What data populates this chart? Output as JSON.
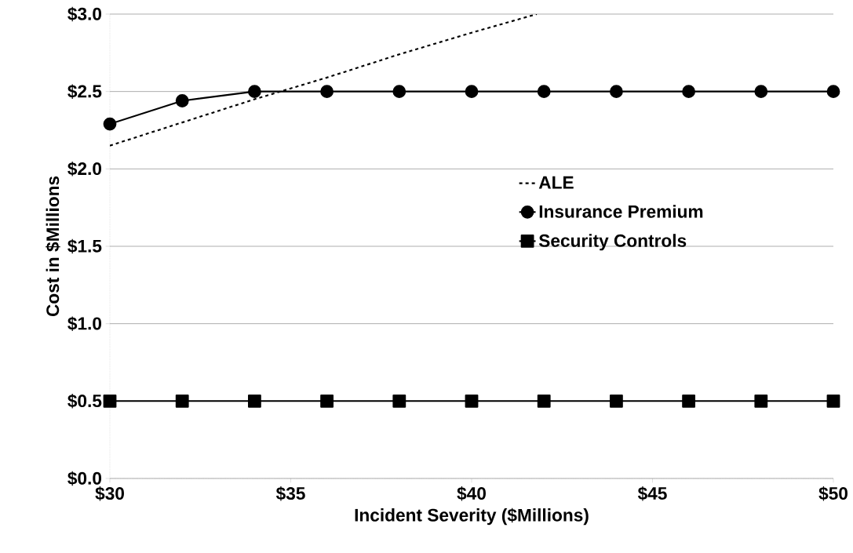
{
  "chart_data": {
    "type": "line",
    "xlabel": "Incident Severity ($Millions)",
    "ylabel": "Cost in $Millions",
    "xlim": [
      30,
      50
    ],
    "ylim": [
      0,
      3
    ],
    "xticks": [
      {
        "value": 30,
        "label": "$30"
      },
      {
        "value": 35,
        "label": "$35"
      },
      {
        "value": 40,
        "label": "$40"
      },
      {
        "value": 45,
        "label": "$45"
      },
      {
        "value": 50,
        "label": "$50"
      }
    ],
    "yticks": [
      {
        "value": 0,
        "label": "$0.0"
      },
      {
        "value": 0.5,
        "label": "$0.5"
      },
      {
        "value": 1,
        "label": "$1.0"
      },
      {
        "value": 1.5,
        "label": "$1.5"
      },
      {
        "value": 2,
        "label": "$2.0"
      },
      {
        "value": 2.5,
        "label": "$2.5"
      },
      {
        "value": 3,
        "label": "$3.0"
      }
    ],
    "grid": "y",
    "legend": "right",
    "series": [
      {
        "name": "ALE",
        "color": "#000000",
        "marker": "none",
        "line_style": "dashed",
        "x": [
          30,
          32,
          34,
          36,
          38,
          40,
          41.8
        ],
        "values": [
          2.15,
          2.3,
          2.45,
          2.59,
          2.74,
          2.88,
          3.0
        ]
      },
      {
        "name": "Insurance Premium",
        "color": "#000000",
        "marker": "circle",
        "line_style": "solid",
        "x": [
          30,
          32,
          34,
          36,
          38,
          40,
          42,
          44,
          46,
          48,
          50
        ],
        "values": [
          2.29,
          2.44,
          2.5,
          2.5,
          2.5,
          2.5,
          2.5,
          2.5,
          2.5,
          2.5,
          2.5
        ]
      },
      {
        "name": "Security Controls",
        "color": "#000000",
        "marker": "square",
        "line_style": "solid",
        "x": [
          30,
          32,
          34,
          36,
          38,
          40,
          42,
          44,
          46,
          48,
          50
        ],
        "values": [
          0.5,
          0.5,
          0.5,
          0.5,
          0.5,
          0.5,
          0.5,
          0.5,
          0.5,
          0.5,
          0.5
        ]
      }
    ]
  }
}
